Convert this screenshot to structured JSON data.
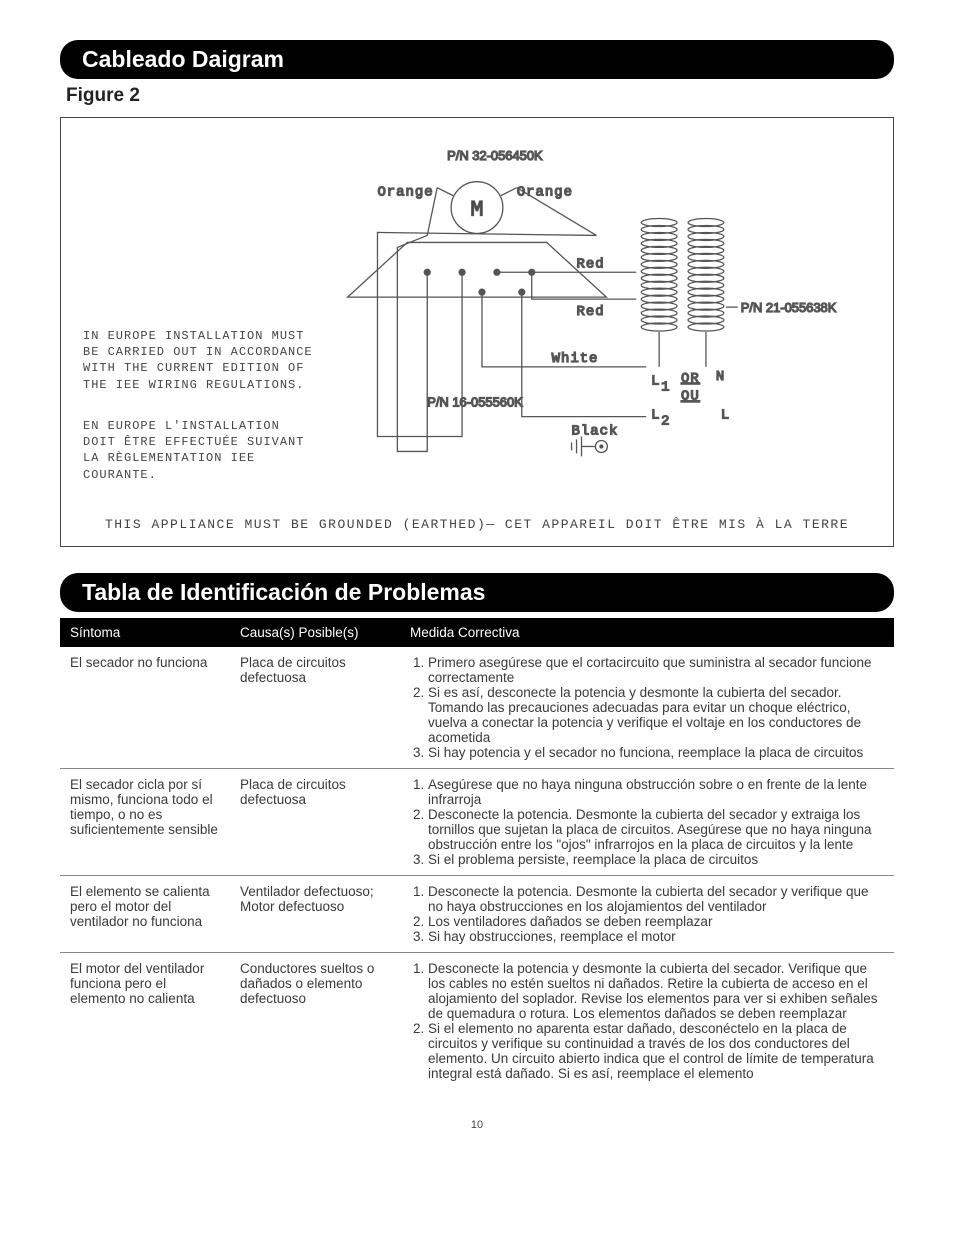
{
  "headers": {
    "wiring": "Cableado Daigram",
    "figure": "Figure 2",
    "trouble": "Tabla de Identificación de Problemas"
  },
  "diagram": {
    "note_en": "IN EUROPE INSTALLATION MUST BE CARRIED OUT IN ACCORDANCE WITH THE CURRENT EDITION OF THE IEE WIRING REGULATIONS.",
    "note_fr": "EN EUROPE L'INSTALLATION DOIT ÊTRE EFFECTUÉE SUIVANT LA RÈGLEMENTATION IEE COURANTE.",
    "ground": "THIS APPLIANCE MUST BE GROUNDED (EARTHED)— CET APPAREIL DOIT ÊTRE MIS À LA TERRE",
    "pn_top": "P/N 32-056450K",
    "pn_mid": "P/N 16-055560K",
    "pn_right": "P/N 21-055638K",
    "orange": "Orange",
    "red": "Red",
    "white": "White",
    "black": "Black",
    "M": "M",
    "L1": "L",
    "L2": "L",
    "sub1": "1",
    "sub2": "2",
    "N": "N",
    "Llbl": "L",
    "or": "OR",
    "ou": "OU",
    "colors": {
      "stroke": "#555555",
      "coil": "#555555",
      "dot": "#555555",
      "bg": "#ffffff"
    },
    "linewidth": 1.3
  },
  "table": {
    "columns": [
      "Síntoma",
      "Causa(s) Posible(s)",
      "Medida Correctiva"
    ],
    "rows": [
      {
        "sym": "El secador no funciona",
        "cause": "Placa de circuitos defectuosa",
        "fix": [
          "Primero asegúrese que el cortacircuito que suministra al secador funcione correctamente",
          "Si es así, desconecte la potencia y desmonte la cubierta del secador. Tomando las precauciones adecuadas para evitar un choque eléctrico, vuelva a conectar la potencia y verifique el voltaje en los conductores de acometida",
          "Si hay potencia y el secador no funciona, reemplace la placa de circuitos"
        ]
      },
      {
        "sym": "El secador cicla por sí mismo, funciona todo el tiempo, o no es suficientemente sensible",
        "cause": "Placa de circuitos defectuosa",
        "fix": [
          "Asegúrese que no haya ninguna obstrucción sobre o en frente de la lente infrarroja",
          "Desconecte la potencia. Desmonte la cubierta del secador y extraiga los tornillos que sujetan la placa de circuitos. Asegúrese que no haya ninguna obstrucción entre los \"ojos\" infrarrojos en la placa de circuitos y la lente",
          "Si el problema persiste, reemplace la placa de circuitos"
        ]
      },
      {
        "sym": "El elemento se calienta pero el motor del ventilador no funciona",
        "cause": "Ventilador defectuoso; Motor defectuoso",
        "fix": [
          "Desconecte la potencia. Desmonte la cubierta del secador y verifique que no haya obstrucciones en los alojamientos del ventilador",
          "Los ventiladores dañados se deben reemplazar",
          "Si hay obstrucciones, reemplace el motor"
        ]
      },
      {
        "sym": "El motor del ventilador funciona pero el elemento no calienta",
        "cause": "Conductores sueltos o dañados o elemento defectuoso",
        "fix": [
          "Desconecte la potencia y desmonte la cubierta del secador. Verifique que los cables no estén sueltos ni dañados. Retire la cubierta de acceso en el alojamiento del soplador. Revise los elementos para ver si exhiben señales de quemadura o rotura. Los elementos dañados se deben reemplazar",
          "Si el elemento no aparenta estar dañado, desconéctelo en la placa de circuitos y verifique su continuidad a través de los dos conductores del elemento. Un circuito abierto indica que el control de límite de temperatura integral está dañado. Si es así, reemplace el elemento"
        ]
      }
    ]
  },
  "pagenum": "10"
}
